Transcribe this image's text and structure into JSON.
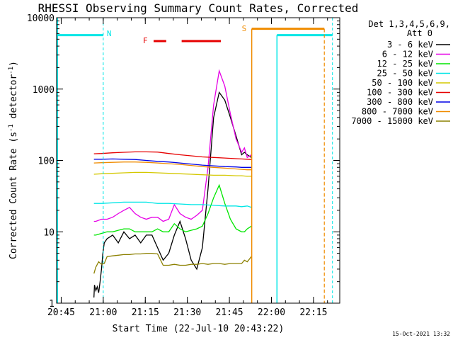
{
  "chart_data": {
    "type": "line",
    "title": "RHESSI Observing Summary Count Rates, Corrected",
    "xlabel": "Start Time (22-Jul-10 20:43:22)",
    "ylabel_main": "Corrected Count Rate (s",
    "ylabel_exp1": "-1",
    "ylabel_mid": " detector",
    "ylabel_exp2": "-1",
    "ylabel_end": ")",
    "yscale": "log",
    "ylim": [
      1,
      10000
    ],
    "xlim_minutes": [
      0,
      101
    ],
    "x_ticks": [
      "20:45",
      "21:00",
      "21:15",
      "21:30",
      "21:45",
      "22:00",
      "22:15"
    ],
    "x_tick_minutes": [
      1.63,
      16.63,
      31.63,
      46.63,
      61.63,
      76.63,
      91.63
    ],
    "y_ticks": [
      1,
      10,
      100,
      1000,
      10000
    ],
    "y_tick_labels": [
      "1",
      "10",
      "100",
      "1000",
      "10000"
    ],
    "legend_header": [
      "Det 1,3,4,5,6,9,",
      "Att 0"
    ],
    "legend_position": "right",
    "series": [
      {
        "name": "3 - 6 keV",
        "color": "#000000",
        "x": [
          13.3,
          13.5,
          14,
          14.5,
          15,
          15.5,
          16,
          16.5,
          17,
          18,
          20,
          22,
          24,
          26,
          28,
          30,
          32,
          34,
          36,
          38,
          40,
          42,
          44,
          46,
          48,
          50,
          52,
          54,
          56,
          58,
          60,
          62,
          64,
          66,
          67,
          68,
          69.5
        ],
        "y": [
          1.2,
          1.8,
          1.5,
          1.7,
          1.4,
          2,
          3,
          5,
          7,
          8,
          9,
          7,
          10,
          8,
          9,
          7,
          9,
          9,
          6,
          4,
          5,
          9,
          14,
          8,
          4,
          3,
          6,
          40,
          400,
          900,
          700,
          400,
          220,
          120,
          130,
          120,
          110
        ]
      },
      {
        "name": "6 - 12 keV",
        "color": "#e600e6",
        "x": [
          13.3,
          14,
          16,
          18,
          20,
          22,
          24,
          26,
          28,
          30,
          32,
          34,
          36,
          38,
          40,
          42,
          44,
          46,
          48,
          50,
          52,
          54,
          56,
          58,
          60,
          62,
          64,
          66,
          67,
          68,
          69.5
        ],
        "y": [
          14,
          14,
          15,
          15,
          16,
          18,
          20,
          22,
          18,
          16,
          15,
          16,
          16,
          14,
          15,
          24,
          18,
          16,
          15,
          17,
          20,
          80,
          600,
          1800,
          1100,
          450,
          200,
          130,
          150,
          110,
          120
        ]
      },
      {
        "name": "12 - 25 keV",
        "color": "#00e600",
        "x": [
          13.3,
          14,
          16,
          18,
          20,
          22,
          24,
          26,
          28,
          30,
          32,
          34,
          36,
          38,
          40,
          42,
          44,
          46,
          48,
          50,
          52,
          54,
          56,
          58,
          60,
          62,
          64,
          66,
          67,
          68,
          69.5
        ],
        "y": [
          9,
          9,
          9.5,
          10,
          10,
          10.5,
          11,
          11,
          10,
          10,
          10,
          10,
          11,
          10,
          10,
          13,
          11,
          10,
          10.5,
          11,
          12,
          18,
          30,
          45,
          25,
          15,
          11,
          10,
          10,
          11,
          12
        ]
      },
      {
        "name": "25 - 50 keV",
        "color": "#00e6e6",
        "x": [
          13.3,
          16,
          20,
          24,
          28,
          32,
          36,
          40,
          44,
          48,
          52,
          56,
          60,
          64,
          66,
          68,
          69.5
        ],
        "y": [
          25,
          25,
          25.5,
          26,
          26,
          26,
          25,
          25,
          24.5,
          24,
          24,
          23.5,
          23,
          23,
          22.5,
          23,
          22
        ]
      },
      {
        "name": "50 - 100 keV",
        "color": "#d4c800",
        "x": [
          13.3,
          16,
          20,
          24,
          28,
          32,
          36,
          40,
          44,
          48,
          52,
          56,
          60,
          64,
          66,
          68,
          69.5
        ],
        "y": [
          64,
          65,
          66,
          67,
          68,
          68,
          67,
          66,
          65,
          64,
          63,
          62,
          62,
          61,
          61,
          60,
          60
        ]
      },
      {
        "name": "100 - 300 keV",
        "color": "#e60000",
        "x": [
          13.3,
          16,
          20,
          24,
          28,
          32,
          36,
          40,
          44,
          48,
          52,
          56,
          60,
          64,
          66,
          68,
          69.5
        ],
        "y": [
          124,
          125,
          128,
          130,
          132,
          132,
          131,
          125,
          120,
          116,
          112,
          110,
          108,
          106,
          105,
          104,
          103
        ]
      },
      {
        "name": "300 - 800 keV",
        "color": "#0000e6",
        "x": [
          13.3,
          16,
          20,
          24,
          28,
          32,
          36,
          40,
          44,
          48,
          52,
          56,
          60,
          64,
          66,
          68,
          69.5
        ],
        "y": [
          104,
          104,
          105,
          104,
          103,
          100,
          97,
          95,
          92,
          89,
          86,
          84,
          82,
          81,
          80,
          80,
          80
        ]
      },
      {
        "name": "800 - 7000 keV",
        "color": "#f08c00",
        "x": [
          13.3,
          16,
          20,
          24,
          28,
          32,
          36,
          40,
          44,
          48,
          52,
          56,
          60,
          64,
          66,
          68,
          69.5
        ],
        "y": [
          92,
          93,
          94,
          95,
          95,
          94,
          92,
          90,
          88,
          85,
          82,
          80,
          78,
          76,
          75,
          74,
          74
        ]
      },
      {
        "name": "7000 - 15000 keV",
        "color": "#8c8000",
        "x": [
          13.3,
          14,
          15,
          16,
          17,
          18,
          20,
          22,
          24,
          26,
          28,
          30,
          32,
          34,
          36,
          38,
          40,
          42,
          44,
          46,
          48,
          50,
          52,
          54,
          56,
          58,
          60,
          62,
          64,
          66,
          67,
          68,
          69.5
        ],
        "y": [
          2.6,
          3.2,
          3.8,
          3.5,
          3.6,
          4.5,
          4.6,
          4.7,
          4.8,
          4.8,
          4.9,
          4.9,
          5,
          5,
          4.9,
          3.4,
          3.4,
          3.5,
          3.4,
          3.4,
          3.5,
          3.5,
          3.6,
          3.5,
          3.6,
          3.6,
          3.5,
          3.6,
          3.6,
          3.6,
          4,
          3.8,
          4.5
        ]
      }
    ],
    "annotations": {
      "night_label": "N",
      "saa_label": "S",
      "flare_label": "F",
      "night_start_minute": 16.63,
      "night_end_minute": 78.6,
      "saa_start_minute": 69.6,
      "saa_end_minute": 95.5,
      "flare_segments": [
        [
          34.6,
          39.1
        ],
        [
          44.6,
          58.6
        ]
      ],
      "saa_bar_level": 7000,
      "night_bar_level": 5700,
      "eclipse_left_minute": 0.3,
      "eclipse_right_minute": 98.4
    },
    "colors": {
      "night": "#00e6e6",
      "saa": "#f08c00",
      "flare": "#e60000",
      "axis": "#000000"
    }
  },
  "footer_timestamp": "15-Oct-2021 13:32"
}
